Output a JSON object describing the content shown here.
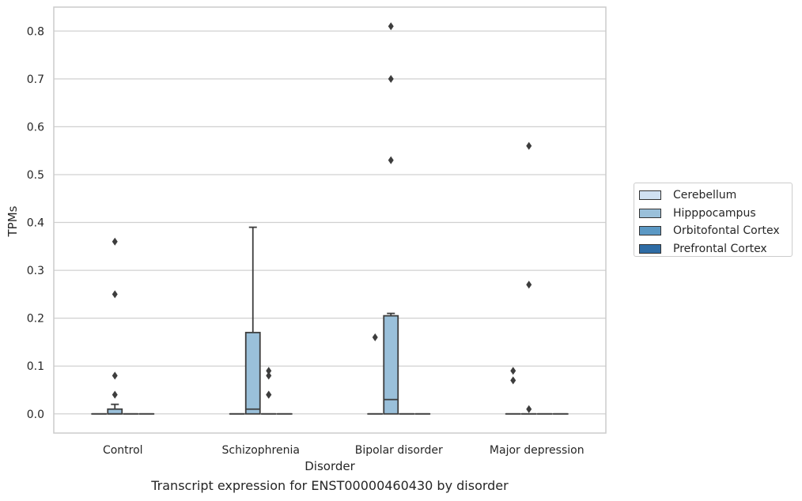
{
  "chart_data": {
    "type": "box",
    "xlabel": "Disorder",
    "ylabel": "TPMs",
    "caption": "Transcript expression for ENST00000460430 by disorder",
    "categories": [
      "Control",
      "Schizophrenia",
      "Bipolar disorder",
      "Major depression"
    ],
    "ylim": [
      -0.04,
      0.85
    ],
    "yticks": [
      "0.0",
      "0.1",
      "0.2",
      "0.3",
      "0.4",
      "0.5",
      "0.6",
      "0.7",
      "0.8"
    ],
    "grid": "horizontal",
    "legend_position": "right",
    "series": [
      {
        "name": "Cerebellum",
        "color": "#d0e1f2",
        "boxes": [
          {
            "q1": 0,
            "median": 0,
            "q3": 0,
            "whisker_low": 0,
            "whisker_high": 0,
            "outliers": []
          },
          {
            "q1": 0,
            "median": 0,
            "q3": 0,
            "whisker_low": 0,
            "whisker_high": 0,
            "outliers": []
          },
          {
            "q1": 0,
            "median": 0,
            "q3": 0,
            "whisker_low": 0,
            "whisker_high": 0,
            "outliers": [
              0.16
            ]
          },
          {
            "q1": 0,
            "median": 0,
            "q3": 0,
            "whisker_low": 0,
            "whisker_high": 0,
            "outliers": [
              0.09,
              0.07
            ]
          }
        ]
      },
      {
        "name": "Hipppocampus",
        "color": "#9ac0da",
        "boxes": [
          {
            "q1": 0,
            "median": 0,
            "q3": 0.01,
            "whisker_low": 0,
            "whisker_high": 0.02,
            "outliers": [
              0.36,
              0.25,
              0.08,
              0.04
            ]
          },
          {
            "q1": 0,
            "median": 0.01,
            "q3": 0.17,
            "whisker_low": 0,
            "whisker_high": 0.39,
            "outliers": []
          },
          {
            "q1": 0,
            "median": 0.03,
            "q3": 0.205,
            "whisker_low": 0,
            "whisker_high": 0.21,
            "outliers": [
              0.81,
              0.7,
              0.53
            ]
          },
          {
            "q1": 0,
            "median": 0,
            "q3": 0,
            "whisker_low": 0,
            "whisker_high": 0,
            "outliers": [
              0.56,
              0.27,
              0.01
            ]
          }
        ]
      },
      {
        "name": "Orbitofontal Cortex",
        "color": "#5b98c4",
        "boxes": [
          {
            "q1": 0,
            "median": 0,
            "q3": 0,
            "whisker_low": 0,
            "whisker_high": 0,
            "outliers": []
          },
          {
            "q1": 0,
            "median": 0,
            "q3": 0,
            "whisker_low": 0,
            "whisker_high": 0,
            "outliers": [
              0.04,
              0.09,
              0.08,
              0.04
            ]
          },
          {
            "q1": 0,
            "median": 0,
            "q3": 0,
            "whisker_low": 0,
            "whisker_high": 0,
            "outliers": []
          },
          {
            "q1": 0,
            "median": 0,
            "q3": 0,
            "whisker_low": 0,
            "whisker_high": 0,
            "outliers": []
          }
        ]
      },
      {
        "name": "Prefrontal Cortex",
        "color": "#2e6ca5",
        "boxes": [
          {
            "q1": 0,
            "median": 0,
            "q3": 0,
            "whisker_low": 0,
            "whisker_high": 0,
            "outliers": []
          },
          {
            "q1": 0,
            "median": 0,
            "q3": 0,
            "whisker_low": 0,
            "whisker_high": 0,
            "outliers": []
          },
          {
            "q1": 0,
            "median": 0,
            "q3": 0,
            "whisker_low": 0,
            "whisker_high": 0,
            "outliers": []
          },
          {
            "q1": 0,
            "median": 0,
            "q3": 0,
            "whisker_low": 0,
            "whisker_high": 0,
            "outliers": []
          }
        ]
      }
    ]
  }
}
